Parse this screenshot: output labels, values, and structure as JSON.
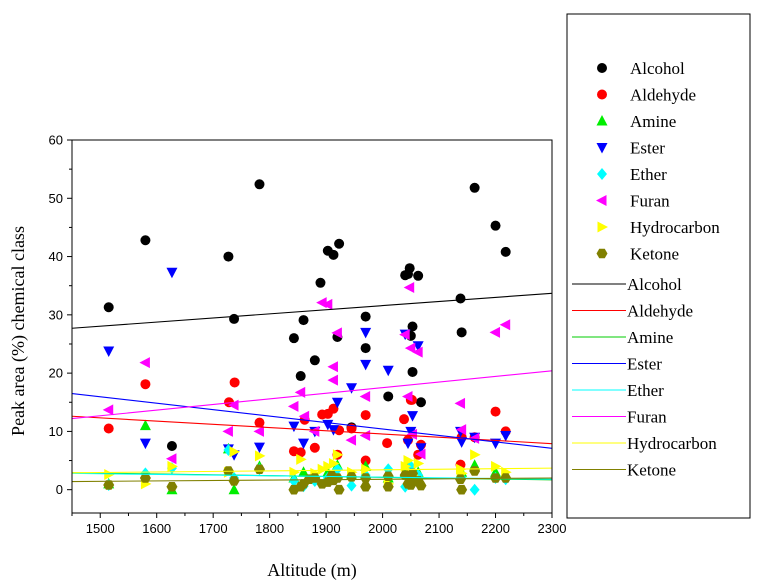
{
  "chart_data": {
    "type": "scatter",
    "title": "",
    "xlabel": "Altitude (m)",
    "ylabel": "Peak area (%) chemical class",
    "xlim": [
      1450,
      2300
    ],
    "ylim": [
      -4,
      60
    ],
    "x_ticks": [
      1500,
      1600,
      1700,
      1800,
      1900,
      2000,
      2100,
      2200,
      2300
    ],
    "y_ticks": [
      0,
      10,
      20,
      30,
      40,
      50,
      60
    ],
    "grid": false,
    "legend_position": "right",
    "series": [
      {
        "name": "Alcohol",
        "color": "#000000",
        "marker": "circle",
        "points": [
          [
            1515,
            31.3
          ],
          [
            1580,
            42.8
          ],
          [
            1627,
            7.5
          ],
          [
            1727,
            40.0
          ],
          [
            1737,
            29.3
          ],
          [
            1782,
            52.4
          ],
          [
            1843,
            26.0
          ],
          [
            1855,
            19.5
          ],
          [
            1860,
            29.1
          ],
          [
            1880,
            22.2
          ],
          [
            1890,
            35.5
          ],
          [
            1903,
            41.0
          ],
          [
            1913,
            40.3
          ],
          [
            1920,
            26.2
          ],
          [
            1923,
            42.2
          ],
          [
            1945,
            10.7
          ],
          [
            1970,
            29.7
          ],
          [
            1970,
            24.3
          ],
          [
            2010,
            16.0
          ],
          [
            2040,
            36.8
          ],
          [
            2045,
            37.0
          ],
          [
            2048,
            38.0
          ],
          [
            2050,
            26.4
          ],
          [
            2053,
            28.0
          ],
          [
            2053,
            20.2
          ],
          [
            2063,
            36.7
          ],
          [
            2068,
            15.0
          ],
          [
            2138,
            32.8
          ],
          [
            2140,
            27.0
          ],
          [
            2163,
            51.8
          ],
          [
            2200,
            45.3
          ],
          [
            2218,
            40.8
          ]
        ]
      },
      {
        "name": "Aldehyde",
        "color": "#ff0000",
        "marker": "circle",
        "points": [
          [
            1515,
            10.5
          ],
          [
            1580,
            18.1
          ],
          [
            1728,
            15.0
          ],
          [
            1738,
            18.4
          ],
          [
            1782,
            11.5
          ],
          [
            1843,
            6.6
          ],
          [
            1855,
            6.4
          ],
          [
            1862,
            12.0
          ],
          [
            1880,
            7.2
          ],
          [
            1893,
            12.9
          ],
          [
            1903,
            13.0
          ],
          [
            1913,
            13.9
          ],
          [
            1920,
            6.0
          ],
          [
            1923,
            10.2
          ],
          [
            1945,
            10.5
          ],
          [
            1970,
            12.8
          ],
          [
            1970,
            5.0
          ],
          [
            2008,
            8.0
          ],
          [
            2038,
            12.1
          ],
          [
            2045,
            8.5
          ],
          [
            2050,
            15.4
          ],
          [
            2052,
            15.4
          ],
          [
            2063,
            6.0
          ],
          [
            2068,
            7.7
          ],
          [
            2138,
            4.3
          ],
          [
            2140,
            9.0
          ],
          [
            2163,
            9.0
          ],
          [
            2200,
            13.4
          ],
          [
            2218,
            10.0
          ]
        ]
      },
      {
        "name": "Amine",
        "color": "#00ee00",
        "marker": "triangle-up",
        "points": [
          [
            1515,
            1.0
          ],
          [
            1580,
            11.0
          ],
          [
            1627,
            0.0
          ],
          [
            1727,
            7.0
          ],
          [
            1737,
            0.0
          ],
          [
            1782,
            4.0
          ],
          [
            1843,
            2.0
          ],
          [
            1860,
            3.0
          ],
          [
            1880,
            1.8
          ],
          [
            1903,
            3.0
          ],
          [
            1920,
            4.2
          ],
          [
            1945,
            2.5
          ],
          [
            1970,
            4.0
          ],
          [
            2010,
            2.0
          ],
          [
            2040,
            3.0
          ],
          [
            2045,
            4.3
          ],
          [
            2050,
            3.8
          ],
          [
            2053,
            2.0
          ],
          [
            2063,
            3.0
          ],
          [
            2140,
            3.0
          ],
          [
            2163,
            4.2
          ],
          [
            2200,
            3.0
          ],
          [
            2218,
            2.5
          ]
        ]
      },
      {
        "name": "Ester",
        "color": "#0000ff",
        "marker": "triangle-down",
        "points": [
          [
            1515,
            23.8
          ],
          [
            1580,
            8.0
          ],
          [
            1627,
            37.3
          ],
          [
            1727,
            7.0
          ],
          [
            1737,
            6.0
          ],
          [
            1782,
            7.3
          ],
          [
            1843,
            10.9
          ],
          [
            1860,
            8.0
          ],
          [
            1880,
            10.0
          ],
          [
            1903,
            11.2
          ],
          [
            1913,
            10.3
          ],
          [
            1920,
            15.0
          ],
          [
            1945,
            17.5
          ],
          [
            1970,
            27.0
          ],
          [
            1970,
            21.5
          ],
          [
            2010,
            20.5
          ],
          [
            2040,
            26.7
          ],
          [
            2045,
            8.0
          ],
          [
            2050,
            10.0
          ],
          [
            2053,
            12.7
          ],
          [
            2063,
            24.7
          ],
          [
            2068,
            7.2
          ],
          [
            2138,
            10.0
          ],
          [
            2140,
            8.2
          ],
          [
            2163,
            9.0
          ],
          [
            2200,
            8.0
          ],
          [
            2218,
            9.3
          ]
        ]
      },
      {
        "name": "Ether",
        "color": "#00ffff",
        "marker": "diamond",
        "points": [
          [
            1515,
            0.8
          ],
          [
            1580,
            2.8
          ],
          [
            1627,
            3.7
          ],
          [
            1727,
            6.8
          ],
          [
            1737,
            2.0
          ],
          [
            1782,
            3.5
          ],
          [
            1843,
            1.5
          ],
          [
            1860,
            0.6
          ],
          [
            1880,
            1.5
          ],
          [
            1903,
            2.0
          ],
          [
            1920,
            3.5
          ],
          [
            1945,
            0.7
          ],
          [
            1970,
            2.5
          ],
          [
            2010,
            3.5
          ],
          [
            2040,
            0.5
          ],
          [
            2050,
            4.0
          ],
          [
            2053,
            1.0
          ],
          [
            2063,
            2.5
          ],
          [
            2140,
            2.0
          ],
          [
            2163,
            0.0
          ],
          [
            2200,
            2.0
          ],
          [
            2218,
            1.8
          ]
        ]
      },
      {
        "name": "Furan",
        "color": "#ff00ff",
        "marker": "triangle-left",
        "points": [
          [
            1515,
            13.7
          ],
          [
            1580,
            21.8
          ],
          [
            1627,
            5.3
          ],
          [
            1727,
            10.0
          ],
          [
            1737,
            14.5
          ],
          [
            1782,
            10.0
          ],
          [
            1843,
            14.3
          ],
          [
            1855,
            16.7
          ],
          [
            1862,
            12.6
          ],
          [
            1880,
            10.0
          ],
          [
            1893,
            32.1
          ],
          [
            1903,
            31.8
          ],
          [
            1913,
            21.1
          ],
          [
            1913,
            18.8
          ],
          [
            1920,
            26.9
          ],
          [
            1945,
            8.5
          ],
          [
            1970,
            16.0
          ],
          [
            1970,
            9.3
          ],
          [
            2040,
            26.6
          ],
          [
            2045,
            16.0
          ],
          [
            2048,
            34.7
          ],
          [
            2050,
            24.3
          ],
          [
            2053,
            9.5
          ],
          [
            2063,
            23.6
          ],
          [
            2068,
            6.1
          ],
          [
            2138,
            14.8
          ],
          [
            2140,
            10.3
          ],
          [
            2163,
            8.8
          ],
          [
            2200,
            27.0
          ],
          [
            2218,
            28.3
          ]
        ]
      },
      {
        "name": "Hydrocarbon",
        "color": "#ffff00",
        "marker": "triangle-right",
        "points": [
          [
            1515,
            2.6
          ],
          [
            1580,
            1.0
          ],
          [
            1627,
            4.0
          ],
          [
            1727,
            3.0
          ],
          [
            1737,
            6.5
          ],
          [
            1782,
            5.8
          ],
          [
            1843,
            3.0
          ],
          [
            1855,
            5.2
          ],
          [
            1880,
            2.8
          ],
          [
            1893,
            3.5
          ],
          [
            1903,
            4.0
          ],
          [
            1913,
            4.5
          ],
          [
            1920,
            6.0
          ],
          [
            1945,
            3.0
          ],
          [
            1970,
            3.5
          ],
          [
            2010,
            1.0
          ],
          [
            2040,
            4.0
          ],
          [
            2045,
            5.0
          ],
          [
            2050,
            3.0
          ],
          [
            2053,
            2.5
          ],
          [
            2063,
            4.5
          ],
          [
            2138,
            3.5
          ],
          [
            2140,
            2.8
          ],
          [
            2163,
            6.0
          ],
          [
            2200,
            4.0
          ],
          [
            2218,
            3.0
          ]
        ]
      },
      {
        "name": "Ketone",
        "color": "#808000",
        "marker": "hexagon",
        "points": [
          [
            1515,
            0.8
          ],
          [
            1580,
            2.0
          ],
          [
            1627,
            0.5
          ],
          [
            1727,
            3.2
          ],
          [
            1737,
            1.5
          ],
          [
            1782,
            3.5
          ],
          [
            1843,
            0.0
          ],
          [
            1855,
            0.5
          ],
          [
            1860,
            1.0
          ],
          [
            1870,
            1.8
          ],
          [
            1880,
            2.0
          ],
          [
            1893,
            1.0
          ],
          [
            1903,
            1.3
          ],
          [
            1910,
            2.4
          ],
          [
            1913,
            1.6
          ],
          [
            1920,
            2.0
          ],
          [
            1923,
            0.0
          ],
          [
            1945,
            2.2
          ],
          [
            1970,
            2.0
          ],
          [
            1970,
            0.5
          ],
          [
            2010,
            2.3
          ],
          [
            2010,
            0.5
          ],
          [
            2040,
            2.5
          ],
          [
            2045,
            1.0
          ],
          [
            2048,
            2.2
          ],
          [
            2050,
            0.8
          ],
          [
            2053,
            2.8
          ],
          [
            2063,
            1.5
          ],
          [
            2068,
            0.7
          ],
          [
            2138,
            1.8
          ],
          [
            2140,
            0.0
          ],
          [
            2163,
            3.2
          ],
          [
            2200,
            2.0
          ],
          [
            2218,
            2.0
          ]
        ]
      }
    ],
    "fit_lines": [
      {
        "name": "Alcohol",
        "color": "#000000",
        "y_start": 27.7,
        "y_end": 33.7
      },
      {
        "name": "Aldehyde",
        "color": "#ff0000",
        "y_start": 12.6,
        "y_end": 7.9
      },
      {
        "name": "Amine",
        "color": "#00cc00",
        "y_start": 2.9,
        "y_end": 1.7
      },
      {
        "name": "Ester",
        "color": "#0000ff",
        "y_start": 16.5,
        "y_end": 7.1
      },
      {
        "name": "Ether",
        "color": "#00ffff",
        "y_start": 2.8,
        "y_end": 1.8
      },
      {
        "name": "Furan",
        "color": "#ff00ff",
        "y_start": 12.2,
        "y_end": 20.4
      },
      {
        "name": "Hydrocarbon",
        "color": "#ffff00",
        "y_start": 2.9,
        "y_end": 3.7
      },
      {
        "name": "Ketone",
        "color": "#808000",
        "y_start": 1.4,
        "y_end": 2.0
      }
    ]
  }
}
